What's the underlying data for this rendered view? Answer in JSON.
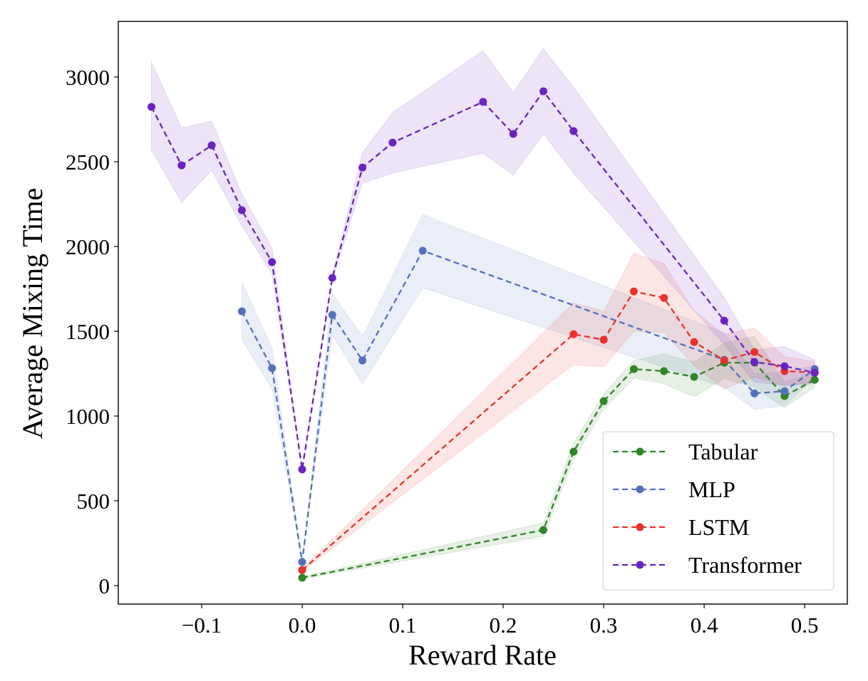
{
  "chart_data": {
    "type": "line",
    "title": "",
    "xlabel": "Reward Rate",
    "ylabel": "Average Mixing Time",
    "xlim": [
      -0.183,
      0.5425
    ],
    "ylim": [
      -109,
      3328
    ],
    "xticks": [
      -0.1,
      0.0,
      0.1,
      0.2,
      0.3,
      0.4,
      0.5
    ],
    "xtick_labels": [
      "−0.1",
      "0.0",
      "0.1",
      "0.2",
      "0.3",
      "0.4",
      "0.5"
    ],
    "yticks": [
      0,
      500,
      1000,
      1500,
      2000,
      2500,
      3000
    ],
    "ytick_labels": [
      "0",
      "500",
      "1000",
      "1500",
      "2000",
      "2500",
      "3000"
    ],
    "grid": false,
    "legend_position": "bottom-right",
    "line_style": "dashed",
    "marker": "circle",
    "shaded_band": "variability range around each series",
    "series": [
      {
        "name": "Tabular",
        "color": "#2e8625",
        "x": [
          0.0,
          0.24,
          0.27,
          0.3,
          0.33,
          0.36,
          0.39,
          0.42,
          0.45,
          0.48,
          0.51
        ],
        "y": [
          46,
          328,
          790,
          1088,
          1277,
          1265,
          1231,
          1315,
          1315,
          1118,
          1214
        ],
        "y_upper": [
          52,
          370,
          840,
          1130,
          1328,
          1366,
          1320,
          1430,
          1470,
          1200,
          1260
        ],
        "y_lower": [
          40,
          290,
          740,
          1040,
          1223,
          1190,
          1113,
          1220,
          1170,
          1050,
          1170
        ]
      },
      {
        "name": "MLP",
        "color": "#5470bd",
        "x": [
          -0.06,
          -0.03,
          0.0,
          0.03,
          0.06,
          0.12,
          0.42,
          0.45,
          0.48,
          0.51
        ],
        "y": [
          1618,
          1282,
          139,
          1597,
          1328,
          1975,
          1332,
          1134,
          1147,
          1277
        ],
        "y_upper": [
          1790,
          1400,
          145,
          1720,
          1471,
          2189,
          1490,
          1250,
          1260,
          1300
        ],
        "y_lower": [
          1450,
          1160,
          133,
          1480,
          1189,
          1756,
          1170,
          1040,
          1060,
          1230
        ]
      },
      {
        "name": "LSTM",
        "color": "#e8322a",
        "x": [
          0.0,
          0.27,
          0.3,
          0.33,
          0.36,
          0.39,
          0.42,
          0.45,
          0.48,
          0.51
        ],
        "y": [
          92,
          1483,
          1450,
          1735,
          1697,
          1437,
          1328,
          1378,
          1265,
          1256
        ],
        "y_upper": [
          100,
          1668,
          1618,
          1962,
          1899,
          1620,
          1480,
          1520,
          1350,
          1320
        ],
        "y_lower": [
          84,
          1302,
          1290,
          1500,
          1492,
          1300,
          1160,
          1230,
          1180,
          1200
        ]
      },
      {
        "name": "Transformer",
        "color": "#6a22c2",
        "x": [
          -0.15,
          -0.12,
          -0.09,
          -0.06,
          -0.03,
          0.0,
          0.03,
          0.06,
          0.09,
          0.18,
          0.21,
          0.24,
          0.27,
          0.42,
          0.45,
          0.48,
          0.51
        ],
        "y": [
          2824,
          2479,
          2597,
          2214,
          1908,
          685,
          1815,
          2466,
          2613,
          2853,
          2664,
          2916,
          2681,
          1563,
          1319,
          1294,
          1256
        ],
        "y_upper": [
          3090,
          2700,
          2740,
          2310,
          1990,
          690,
          1830,
          2555,
          2790,
          3155,
          2908,
          3168,
          2940,
          1700,
          1390,
          1410,
          1330
        ],
        "y_lower": [
          2570,
          2260,
          2450,
          2120,
          1840,
          680,
          1800,
          2374,
          2433,
          2550,
          2420,
          2664,
          2433,
          1420,
          1200,
          1180,
          1190
        ]
      }
    ]
  }
}
